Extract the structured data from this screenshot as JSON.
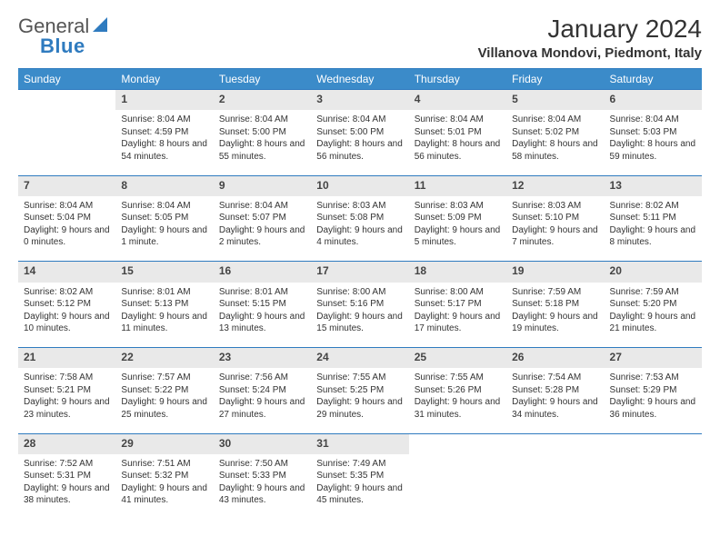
{
  "logo": {
    "general": "General",
    "blue": "Blue"
  },
  "title": "January 2024",
  "location": "Villanova Mondovi, Piedmont, Italy",
  "colors": {
    "header_bg": "#3b8bc9",
    "header_text": "#ffffff",
    "rule": "#2f7bbf",
    "daynum_bg": "#e9e9e9",
    "text": "#333333",
    "logo_blue": "#2f7bbf"
  },
  "day_headers": [
    "Sunday",
    "Monday",
    "Tuesday",
    "Wednesday",
    "Thursday",
    "Friday",
    "Saturday"
  ],
  "weeks": [
    [
      null,
      {
        "n": "1",
        "sr": "8:04 AM",
        "ss": "4:59 PM",
        "dl": "8 hours and 54 minutes."
      },
      {
        "n": "2",
        "sr": "8:04 AM",
        "ss": "5:00 PM",
        "dl": "8 hours and 55 minutes."
      },
      {
        "n": "3",
        "sr": "8:04 AM",
        "ss": "5:00 PM",
        "dl": "8 hours and 56 minutes."
      },
      {
        "n": "4",
        "sr": "8:04 AM",
        "ss": "5:01 PM",
        "dl": "8 hours and 56 minutes."
      },
      {
        "n": "5",
        "sr": "8:04 AM",
        "ss": "5:02 PM",
        "dl": "8 hours and 58 minutes."
      },
      {
        "n": "6",
        "sr": "8:04 AM",
        "ss": "5:03 PM",
        "dl": "8 hours and 59 minutes."
      }
    ],
    [
      {
        "n": "7",
        "sr": "8:04 AM",
        "ss": "5:04 PM",
        "dl": "9 hours and 0 minutes."
      },
      {
        "n": "8",
        "sr": "8:04 AM",
        "ss": "5:05 PM",
        "dl": "9 hours and 1 minute."
      },
      {
        "n": "9",
        "sr": "8:04 AM",
        "ss": "5:07 PM",
        "dl": "9 hours and 2 minutes."
      },
      {
        "n": "10",
        "sr": "8:03 AM",
        "ss": "5:08 PM",
        "dl": "9 hours and 4 minutes."
      },
      {
        "n": "11",
        "sr": "8:03 AM",
        "ss": "5:09 PM",
        "dl": "9 hours and 5 minutes."
      },
      {
        "n": "12",
        "sr": "8:03 AM",
        "ss": "5:10 PM",
        "dl": "9 hours and 7 minutes."
      },
      {
        "n": "13",
        "sr": "8:02 AM",
        "ss": "5:11 PM",
        "dl": "9 hours and 8 minutes."
      }
    ],
    [
      {
        "n": "14",
        "sr": "8:02 AM",
        "ss": "5:12 PM",
        "dl": "9 hours and 10 minutes."
      },
      {
        "n": "15",
        "sr": "8:01 AM",
        "ss": "5:13 PM",
        "dl": "9 hours and 11 minutes."
      },
      {
        "n": "16",
        "sr": "8:01 AM",
        "ss": "5:15 PM",
        "dl": "9 hours and 13 minutes."
      },
      {
        "n": "17",
        "sr": "8:00 AM",
        "ss": "5:16 PM",
        "dl": "9 hours and 15 minutes."
      },
      {
        "n": "18",
        "sr": "8:00 AM",
        "ss": "5:17 PM",
        "dl": "9 hours and 17 minutes."
      },
      {
        "n": "19",
        "sr": "7:59 AM",
        "ss": "5:18 PM",
        "dl": "9 hours and 19 minutes."
      },
      {
        "n": "20",
        "sr": "7:59 AM",
        "ss": "5:20 PM",
        "dl": "9 hours and 21 minutes."
      }
    ],
    [
      {
        "n": "21",
        "sr": "7:58 AM",
        "ss": "5:21 PM",
        "dl": "9 hours and 23 minutes."
      },
      {
        "n": "22",
        "sr": "7:57 AM",
        "ss": "5:22 PM",
        "dl": "9 hours and 25 minutes."
      },
      {
        "n": "23",
        "sr": "7:56 AM",
        "ss": "5:24 PM",
        "dl": "9 hours and 27 minutes."
      },
      {
        "n": "24",
        "sr": "7:55 AM",
        "ss": "5:25 PM",
        "dl": "9 hours and 29 minutes."
      },
      {
        "n": "25",
        "sr": "7:55 AM",
        "ss": "5:26 PM",
        "dl": "9 hours and 31 minutes."
      },
      {
        "n": "26",
        "sr": "7:54 AM",
        "ss": "5:28 PM",
        "dl": "9 hours and 34 minutes."
      },
      {
        "n": "27",
        "sr": "7:53 AM",
        "ss": "5:29 PM",
        "dl": "9 hours and 36 minutes."
      }
    ],
    [
      {
        "n": "28",
        "sr": "7:52 AM",
        "ss": "5:31 PM",
        "dl": "9 hours and 38 minutes."
      },
      {
        "n": "29",
        "sr": "7:51 AM",
        "ss": "5:32 PM",
        "dl": "9 hours and 41 minutes."
      },
      {
        "n": "30",
        "sr": "7:50 AM",
        "ss": "5:33 PM",
        "dl": "9 hours and 43 minutes."
      },
      {
        "n": "31",
        "sr": "7:49 AM",
        "ss": "5:35 PM",
        "dl": "9 hours and 45 minutes."
      },
      null,
      null,
      null
    ]
  ],
  "labels": {
    "sunrise": "Sunrise:",
    "sunset": "Sunset:",
    "daylight": "Daylight:"
  }
}
